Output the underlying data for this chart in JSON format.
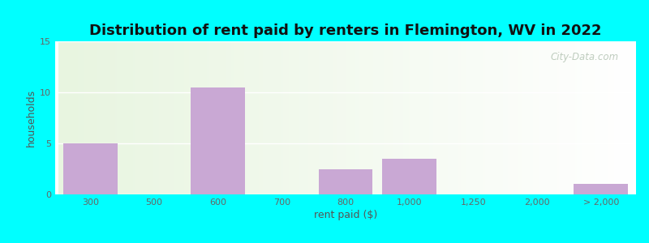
{
  "title": "Distribution of rent paid by renters in Flemington, WV in 2022",
  "xlabel": "rent paid ($)",
  "ylabel": "households",
  "bar_labels": [
    "300",
    "500",
    "600",
    "700",
    "800",
    "1,000",
    "1,250",
    "2,000",
    "> 2,000"
  ],
  "bar_values": [
    5,
    0,
    10.5,
    0,
    2.5,
    3.5,
    0,
    0,
    1
  ],
  "bar_positions": [
    0,
    1,
    2,
    3,
    4,
    5,
    6,
    7,
    8
  ],
  "bar_color": "#c9a8d4",
  "ylim": [
    0,
    15
  ],
  "yticks": [
    0,
    5,
    10,
    15
  ],
  "background_color": "#eaf5df",
  "outer_bg": "#00ffff",
  "title_fontsize": 13,
  "axis_label_fontsize": 9,
  "tick_fontsize": 8,
  "watermark_text": "City-Data.com",
  "grid_color": "#ffffff",
  "bar_width": 0.85
}
